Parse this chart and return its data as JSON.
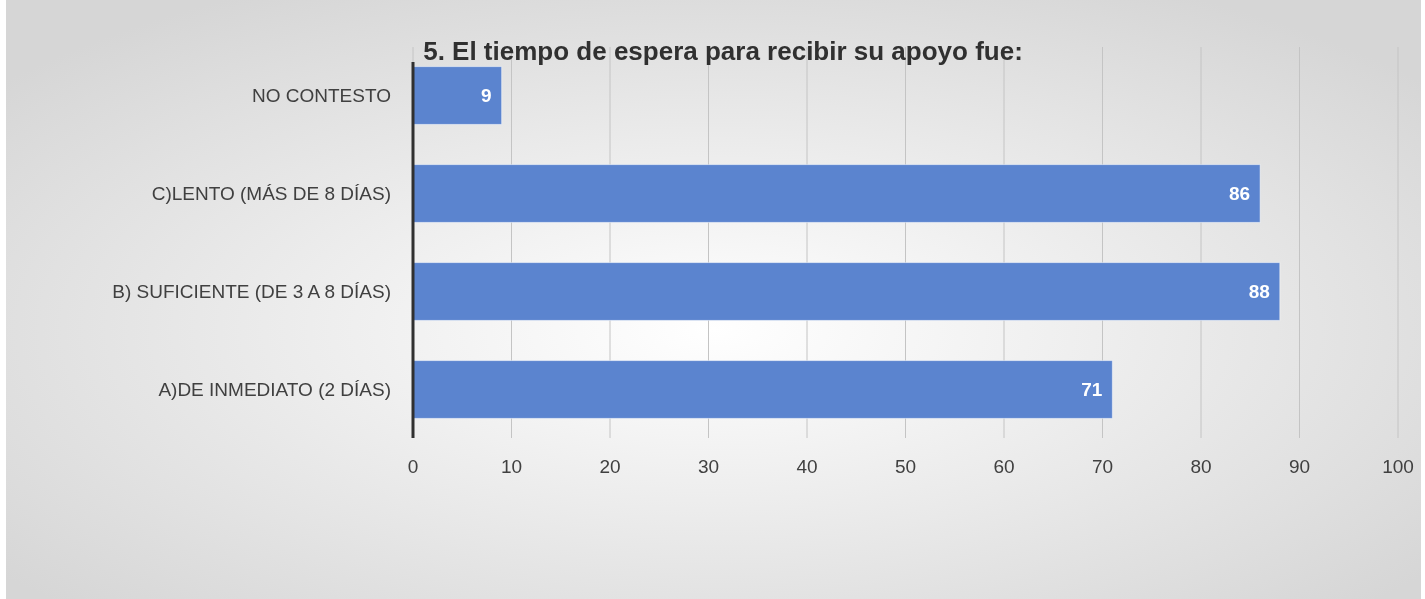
{
  "chart_data": {
    "type": "bar",
    "orientation": "horizontal",
    "title": "5. El tiempo de espera para recibir su apoyo fue:",
    "categories": [
      "NO CONTESTO",
      "C)LENTO (MÁS DE 8 DÍAS)",
      "B) SUFICIENTE (DE 3 A 8 DÍAS)",
      "A)DE INMEDIATO (2 DÍAS)"
    ],
    "values": [
      9,
      86,
      88,
      71
    ],
    "color": "#5b84cf",
    "xlim": [
      0,
      100
    ],
    "xticks": [
      0,
      10,
      20,
      30,
      40,
      50,
      60,
      70,
      80,
      90,
      100
    ],
    "grid": "x",
    "data_labels": true
  }
}
